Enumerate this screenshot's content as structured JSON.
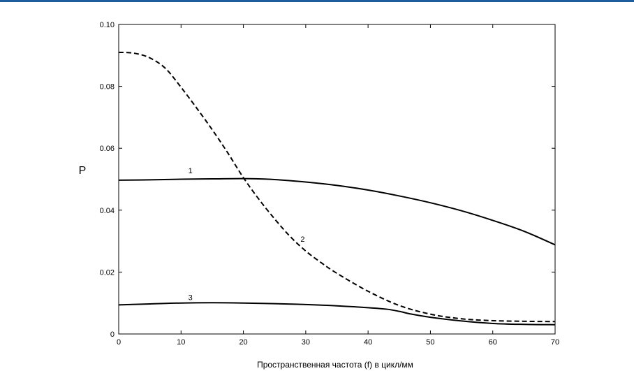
{
  "chart_data": {
    "type": "line",
    "title": "",
    "xlabel": "Пространственная частота (f) в цикл/мм",
    "ylabel": "P",
    "xlim": [
      0,
      70
    ],
    "ylim": [
      0,
      0.1
    ],
    "x_ticks": [
      0,
      10,
      20,
      30,
      40,
      50,
      60,
      70
    ],
    "y_ticks": [
      0,
      0.02,
      0.04,
      0.06,
      0.08,
      0.1
    ],
    "x_tick_labels": [
      "0",
      "10",
      "20",
      "30",
      "40",
      "50",
      "60",
      "70"
    ],
    "y_tick_labels": [
      "0",
      "0.02",
      "0.04",
      "0.06",
      "0.08",
      "0.10"
    ],
    "grid": false,
    "series": [
      {
        "name": "1",
        "style": "solid",
        "x": [
          0,
          5,
          10,
          15,
          20,
          25,
          30,
          35,
          40,
          45,
          50,
          55,
          60,
          65,
          70
        ],
        "y": [
          0.0497,
          0.0498,
          0.05,
          0.0501,
          0.0502,
          0.0499,
          0.0491,
          0.048,
          0.0465,
          0.0446,
          0.0424,
          0.0398,
          0.0367,
          0.0332,
          0.0288
        ],
        "label_at": [
          11.5,
          0.0528
        ]
      },
      {
        "name": "2",
        "style": "dashed",
        "x": [
          0,
          2.5,
          5,
          7.5,
          10,
          12.5,
          15,
          17.5,
          20,
          22.5,
          25,
          27.5,
          30,
          32.5,
          35,
          40,
          45,
          50,
          55,
          60,
          65,
          70
        ],
        "y": [
          0.091,
          0.0907,
          0.0892,
          0.0858,
          0.0797,
          0.073,
          0.066,
          0.0585,
          0.0505,
          0.0435,
          0.0372,
          0.0315,
          0.0268,
          0.023,
          0.0196,
          0.0138,
          0.0092,
          0.0064,
          0.0049,
          0.0043,
          0.0041,
          0.004
        ],
        "label_at": [
          29.5,
          0.0307
        ]
      },
      {
        "name": "3",
        "style": "solid",
        "x": [
          0,
          5,
          10,
          15,
          20,
          25,
          30,
          35,
          40,
          43,
          45,
          47,
          50,
          55,
          60,
          65,
          70
        ],
        "y": [
          0.0094,
          0.0097,
          0.01,
          0.0101,
          0.01,
          0.0098,
          0.0095,
          0.0091,
          0.0085,
          0.008,
          0.0073,
          0.0064,
          0.0054,
          0.0042,
          0.0034,
          0.0031,
          0.003
        ],
        "label_at": [
          11.5,
          0.0118
        ]
      }
    ]
  }
}
